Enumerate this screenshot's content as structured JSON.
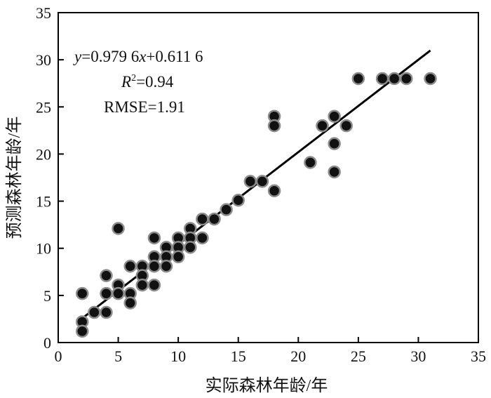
{
  "chart_data": {
    "type": "scatter",
    "xlabel": "实际森林年龄/年",
    "ylabel": "预测森林年龄/年",
    "xlim": [
      0,
      35
    ],
    "ylim": [
      0,
      35
    ],
    "xticks": [
      0,
      5,
      10,
      15,
      20,
      25,
      30,
      35
    ],
    "yticks": [
      0,
      5,
      10,
      15,
      20,
      25,
      30,
      35
    ],
    "grid": false,
    "annotations": {
      "equation": "y=0.979 6x+0.611 6",
      "equation_y": "y",
      "equation_rest": "=0.979 6",
      "equation_x": "x",
      "equation_tail": "+0.611 6",
      "r2": "R2=0.94",
      "r2_R": "R",
      "r2_sup": "2",
      "r2_value": "=0.94",
      "rmse": "RMSE=1.91"
    },
    "fit_line": {
      "slope": 0.9796,
      "intercept": 0.6116,
      "x_range": [
        2,
        31
      ],
      "color": "#000000"
    },
    "marker": {
      "fill": "#111111",
      "stroke": "#8c8c8c"
    },
    "points": [
      [
        2,
        5.2
      ],
      [
        2,
        2.2
      ],
      [
        2,
        1.2
      ],
      [
        3,
        3.2
      ],
      [
        4,
        7.1
      ],
      [
        4,
        5.2
      ],
      [
        4,
        3.2
      ],
      [
        5,
        12.1
      ],
      [
        5,
        6.1
      ],
      [
        5,
        5.2
      ],
      [
        6,
        8.1
      ],
      [
        6,
        5.2
      ],
      [
        6,
        4.2
      ],
      [
        7,
        8.1
      ],
      [
        7,
        7.1
      ],
      [
        7,
        6.1
      ],
      [
        8,
        11.1
      ],
      [
        8,
        9.1
      ],
      [
        8,
        8.1
      ],
      [
        8,
        6.1
      ],
      [
        9,
        10.1
      ],
      [
        9,
        9.1
      ],
      [
        9,
        8.1
      ],
      [
        10,
        11.1
      ],
      [
        10,
        10.1
      ],
      [
        10,
        9.1
      ],
      [
        11,
        12.1
      ],
      [
        11,
        11.1
      ],
      [
        11,
        10.1
      ],
      [
        12,
        13.1
      ],
      [
        12,
        11.1
      ],
      [
        13,
        13.1
      ],
      [
        14,
        14.1
      ],
      [
        15,
        15.1
      ],
      [
        16,
        17.1
      ],
      [
        17,
        17.1
      ],
      [
        18,
        24.0
      ],
      [
        18,
        23.0
      ],
      [
        18,
        16.1
      ],
      [
        21,
        19.1
      ],
      [
        22,
        23.0
      ],
      [
        23,
        24.0
      ],
      [
        23,
        21.1
      ],
      [
        23,
        18.1
      ],
      [
        24,
        23.0
      ],
      [
        25,
        28.0
      ],
      [
        27,
        28.0
      ],
      [
        28,
        28.0
      ],
      [
        29,
        28.0
      ],
      [
        31,
        28.0
      ]
    ]
  }
}
